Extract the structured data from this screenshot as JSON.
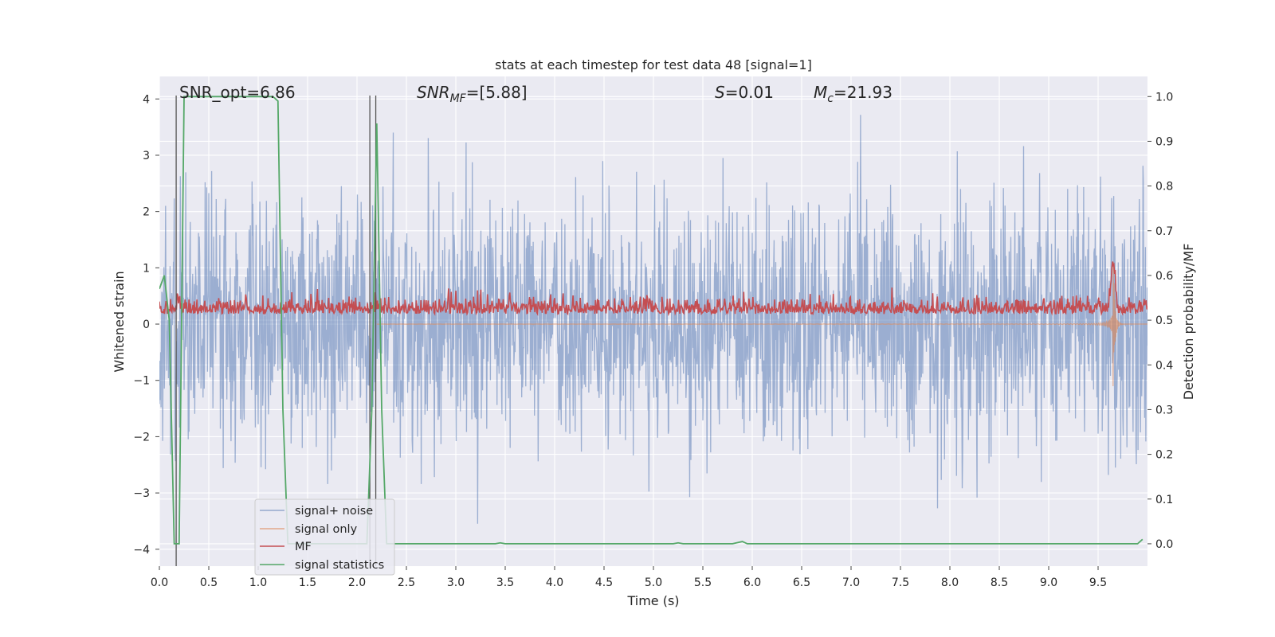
{
  "chart_data": {
    "type": "line",
    "title": "stats at each timestep for test data 48 [signal=1]",
    "xlabel": "Time (s)",
    "ylabel_left": "Whitened strain",
    "ylabel_right": "Detection probability/MF",
    "xlim": [
      0.0,
      10.0
    ],
    "ylim_left": [
      -4.3,
      4.4
    ],
    "ylim_right": [
      -0.05,
      1.045
    ],
    "xticks": [
      "0.0",
      "0.5",
      "1.0",
      "1.5",
      "2.0",
      "2.5",
      "3.0",
      "3.5",
      "4.0",
      "4.5",
      "5.0",
      "5.5",
      "6.0",
      "6.5",
      "7.0",
      "7.5",
      "8.0",
      "8.5",
      "9.0",
      "9.5"
    ],
    "yticks_left": [
      "4",
      "3",
      "2",
      "1",
      "0",
      "−1",
      "−2",
      "−3",
      "−4"
    ],
    "yticks_right": [
      "1.0",
      "0.9",
      "0.8",
      "0.7",
      "0.6",
      "0.5",
      "0.4",
      "0.3",
      "0.2",
      "0.1",
      "0.0"
    ],
    "grid": true,
    "background": "#eaeaf2",
    "legend_position": "lower-left",
    "annotations": {
      "snr_opt": "SNR_opt=6.86",
      "snr_mf_base": "SNR",
      "snr_mf_sub": "MF",
      "snr_mf_value": "=[5.88]",
      "s_base": "S",
      "s_value": "=0.01",
      "mc_base": "M",
      "mc_sub": "c",
      "mc_value": "=21.93"
    },
    "vertical_markers_x": [
      0.17,
      2.13,
      2.19
    ],
    "series": [
      {
        "name": "signal+ noise",
        "color": "#4c72b0",
        "axis": "left",
        "alpha": 0.5,
        "noise_std": 1.05,
        "approx_range": [
          -3.8,
          3.85
        ]
      },
      {
        "name": "signal only",
        "color": "#dd8452",
        "axis": "left",
        "alpha": 0.6,
        "chirp_peak_time": 9.65,
        "chirp_peak_amplitude": 1.5
      },
      {
        "name": "MF",
        "color": "#c44e52",
        "axis": "left",
        "baseline": 0.2,
        "peak_time": 9.65,
        "peak_value": 1.0
      },
      {
        "name": "signal statistics",
        "color": "#55a868",
        "axis": "right",
        "x": [
          0.0,
          0.05,
          0.1,
          0.15,
          0.2,
          0.25,
          1.15,
          1.2,
          1.25,
          1.3,
          2.05,
          2.1,
          2.15,
          2.2,
          2.25,
          2.3,
          3.4,
          3.45,
          3.5,
          5.2,
          5.25,
          5.3,
          5.8,
          5.9,
          5.95,
          6.0,
          9.9,
          9.95
        ],
        "y": [
          0.57,
          0.6,
          0.5,
          0.0,
          0.0,
          1.0,
          1.0,
          0.99,
          0.3,
          0.0,
          0.0,
          0.0,
          0.3,
          0.94,
          0.3,
          0.0,
          0.0,
          0.002,
          0.0,
          0.0,
          0.002,
          0.0,
          0.0,
          0.005,
          0.0,
          0.0,
          0.0,
          0.01
        ]
      }
    ]
  }
}
